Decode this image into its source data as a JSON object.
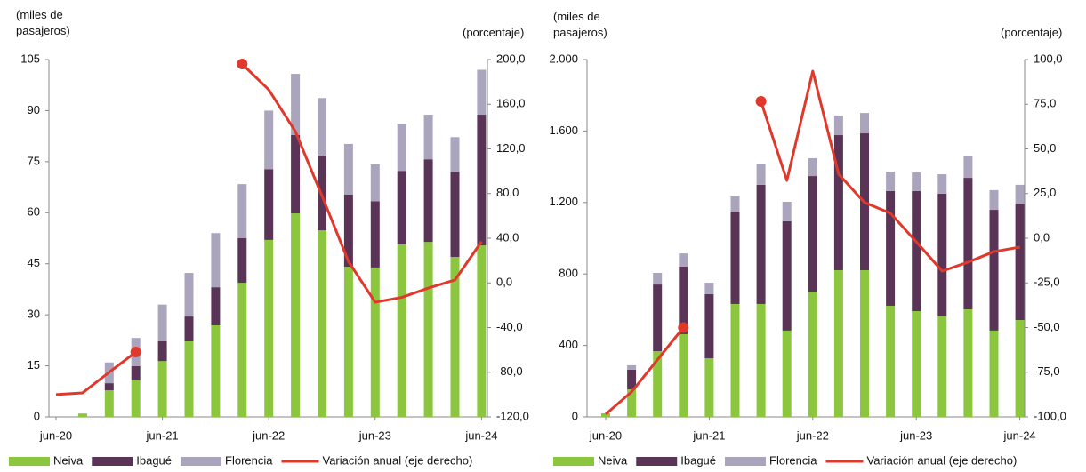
{
  "chart_data": [
    {
      "type": "bar",
      "stacked": true,
      "y_label": "(miles de pasajeros)",
      "y2_label": "(porcentaje)",
      "categories": [
        "jun-20",
        null,
        null,
        null,
        "jun-21",
        null,
        null,
        null,
        "jun-22",
        null,
        null,
        null,
        "jun-23",
        null,
        null,
        null,
        "jun-24"
      ],
      "series": [
        {
          "name": "Neiva",
          "color": "#8cc63f",
          "values": [
            0,
            1,
            7.8,
            10.7,
            16.4,
            22.2,
            26.9,
            39.4,
            52,
            59.8,
            54.8,
            44.1,
            43.9,
            50.7,
            51.4,
            47,
            50.4
          ]
        },
        {
          "name": "Ibagué",
          "color": "#5a3456",
          "values": [
            0,
            0,
            2.1,
            4.2,
            5.8,
            7.3,
            11.2,
            13.1,
            20.8,
            23,
            22,
            21.2,
            19.5,
            21.6,
            24.3,
            25,
            38.4
          ]
        },
        {
          "name": "Florencia",
          "color": "#aaa5bd",
          "values": [
            0,
            0,
            6.1,
            8.3,
            10.8,
            12.8,
            15.9,
            15.9,
            17.2,
            18,
            16.9,
            14.9,
            10.8,
            13.9,
            13.1,
            10.2,
            13.2
          ]
        },
        {
          "name": "Variación anual (eje derecho)",
          "type": "line",
          "axis": "y2",
          "color": "#e0392b",
          "values": [
            -100,
            -98.5,
            -80,
            -61.9,
            null,
            null,
            null,
            196,
            173,
            135.6,
            78,
            19,
            -17.3,
            -13,
            -4.6,
            2.6,
            37
          ]
        }
      ],
      "ylim": [
        0,
        105
      ],
      "yticks": [
        0,
        15,
        30,
        45,
        60,
        75,
        90,
        105
      ],
      "y2lim": [
        -120,
        200
      ],
      "y2ticks": [
        {
          "value": -120,
          "label": "-120,0"
        },
        {
          "value": -80,
          "label": "-80,0"
        },
        {
          "value": -40,
          "label": "-40,0"
        },
        {
          "value": 0,
          "label": "0,0"
        },
        {
          "value": 40,
          "label": "40,0"
        },
        {
          "value": 80,
          "label": "80,0"
        },
        {
          "value": 120,
          "label": "120,0"
        },
        {
          "value": 160,
          "label": "160,0"
        },
        {
          "value": 200,
          "label": "200,0"
        }
      ]
    },
    {
      "type": "bar",
      "stacked": true,
      "y_label": "(miles de pasajeros)",
      "y2_label": "(porcentaje)",
      "categories": [
        "jun-20",
        null,
        null,
        null,
        "jun-21",
        null,
        null,
        null,
        "jun-22",
        null,
        null,
        null,
        "jun-23",
        null,
        null,
        null,
        "jun-24"
      ],
      "series": [
        {
          "name": "Neiva",
          "color": "#8cc63f",
          "values": [
            20,
            154,
            368,
            463,
            328,
            632,
            632,
            483,
            701,
            821,
            821,
            622,
            592,
            562,
            602,
            483,
            542
          ]
        },
        {
          "name": "Ibagué",
          "color": "#5a3456",
          "values": [
            0,
            110,
            373,
            378,
            359,
            517,
            667,
            612,
            647,
            756,
            766,
            642,
            672,
            687,
            736,
            676,
            652
          ]
        },
        {
          "name": "Florencia",
          "color": "#aaa5bd",
          "values": [
            0,
            25,
            65,
            74,
            64,
            85,
            119,
            109,
            100,
            110,
            114,
            109,
            104,
            109,
            120,
            110,
            105
          ]
        },
        {
          "name": "Variación anual (eje derecho)",
          "type": "line",
          "axis": "y2",
          "color": "#e0392b",
          "values": [
            -98.5,
            -86,
            -68,
            -50,
            null,
            null,
            76.6,
            32.3,
            93.5,
            35.8,
            20,
            14,
            -2,
            -18.4,
            -13.4,
            -7.5,
            -5
          ]
        }
      ],
      "ylim": [
        0,
        2000
      ],
      "yticks": [
        0,
        400,
        800,
        {
          "value": 1200,
          "label": "1.200"
        },
        {
          "value": 1600,
          "label": "1.600"
        },
        {
          "value": 2000,
          "label": "2.000"
        }
      ],
      "y2lim": [
        -100,
        100
      ],
      "y2ticks": [
        {
          "value": -100,
          "label": "-100,0"
        },
        {
          "value": -75,
          "label": "-75,0"
        },
        {
          "value": -50,
          "label": "-50,0"
        },
        {
          "value": -25,
          "label": "-25,0"
        },
        {
          "value": 0,
          "label": "0,0"
        },
        {
          "value": 25,
          "label": "25,0"
        },
        {
          "value": 50,
          "label": "50,0"
        },
        {
          "value": 75,
          "label": "75,0"
        },
        {
          "value": 100,
          "label": "100,0"
        }
      ]
    }
  ]
}
